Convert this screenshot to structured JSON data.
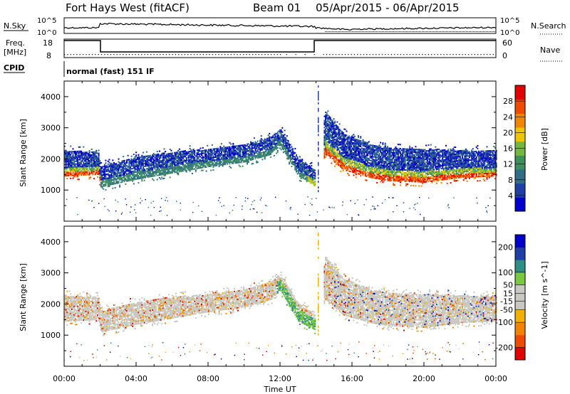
{
  "header": {
    "station": "Fort Hays West (fitACF)",
    "beam": "Beam 01",
    "date_range": "05/Apr/2015 - 06/Apr/2015"
  },
  "status_panels": {
    "nsky_label": "N.Sky",
    "nsearch_label": "N.Search",
    "freq_label_1": "Freq.",
    "freq_label_2": "[MHz]",
    "nave_label": "Nave",
    "cpid_label": "CPID",
    "cpid_value": "normal (fast) 151 IF",
    "noise_ticks": [
      "10^5",
      "10^0"
    ],
    "freq_ticks": [
      "18",
      "8"
    ],
    "nave_ticks": [
      "60",
      "0"
    ]
  },
  "colors": {
    "power": [
      "#0000cc",
      "#1f3fa6",
      "#2e6e86",
      "#3f8f5e",
      "#73b83c",
      "#f2c400",
      "#f28500",
      "#f04a00",
      "#e00000"
    ],
    "velocity": [
      "#e00000",
      "#f04a00",
      "#f28500",
      "#f2b000",
      "#c8c8c0",
      "#c8c8c0",
      "#78c840",
      "#2e8e86",
      "#1f3fa6",
      "#0000cc"
    ]
  },
  "chart_data": [
    {
      "type": "heatmap",
      "title": "Power",
      "ylabel": "Slant Range [km]",
      "xlabel": "",
      "ylim": [
        0,
        4500
      ],
      "y_ticks": [
        1000,
        2000,
        3000,
        4000
      ],
      "colorbar_label": "Power [dB]",
      "colorbar_ticks": [
        4,
        8,
        12,
        16,
        20,
        24,
        28
      ],
      "colorbar_range": [
        0,
        32
      ],
      "x_ticks": [
        "00:00",
        "04:00",
        "08:00",
        "12:00",
        "16:00",
        "20:00",
        "00:00"
      ],
      "echo_band": {
        "time_hours": [
          0,
          1.9,
          2.0,
          4,
          6,
          8,
          10,
          11.5,
          12,
          13,
          14,
          14.5,
          15.5,
          17,
          18,
          20,
          22,
          24
        ],
        "upper_km": [
          2250,
          2200,
          1750,
          2050,
          2200,
          2300,
          2450,
          2700,
          2950,
          2000,
          1600,
          3500,
          2800,
          2450,
          2350,
          2300,
          2250,
          2250
        ],
        "lower_km": [
          1400,
          1450,
          1050,
          1300,
          1500,
          1700,
          1850,
          2100,
          2400,
          1400,
          1100,
          2100,
          1600,
          1350,
          1250,
          1200,
          1350,
          1400
        ]
      }
    },
    {
      "type": "heatmap",
      "title": "Velocity",
      "ylabel": "Slant Range [km]",
      "xlabel": "Time UT",
      "ylim": [
        0,
        4500
      ],
      "y_ticks": [
        1000,
        2000,
        3000,
        4000
      ],
      "colorbar_label": "Velocity [m s^-1]",
      "colorbar_ticks": [
        -200,
        -100,
        -50,
        -15,
        15,
        50,
        100,
        200
      ],
      "colorbar_range": [
        -250,
        250
      ],
      "x_ticks": [
        "00:00",
        "04:00",
        "08:00",
        "12:00",
        "16:00",
        "20:00",
        "00:00"
      ],
      "echo_band": {
        "time_hours": [
          0,
          1.9,
          2.0,
          4,
          6,
          8,
          10,
          11.5,
          12,
          13,
          14,
          14.5,
          15.5,
          17,
          18,
          20,
          22,
          24
        ],
        "upper_km": [
          2250,
          2200,
          1750,
          2050,
          2200,
          2300,
          2450,
          2700,
          2950,
          2000,
          1600,
          3500,
          2800,
          2450,
          2350,
          2300,
          2250,
          2250
        ],
        "lower_km": [
          1400,
          1450,
          1050,
          1300,
          1500,
          1700,
          1850,
          2100,
          2400,
          1400,
          1100,
          2100,
          1600,
          1350,
          1250,
          1200,
          1350,
          1400
        ]
      }
    }
  ]
}
